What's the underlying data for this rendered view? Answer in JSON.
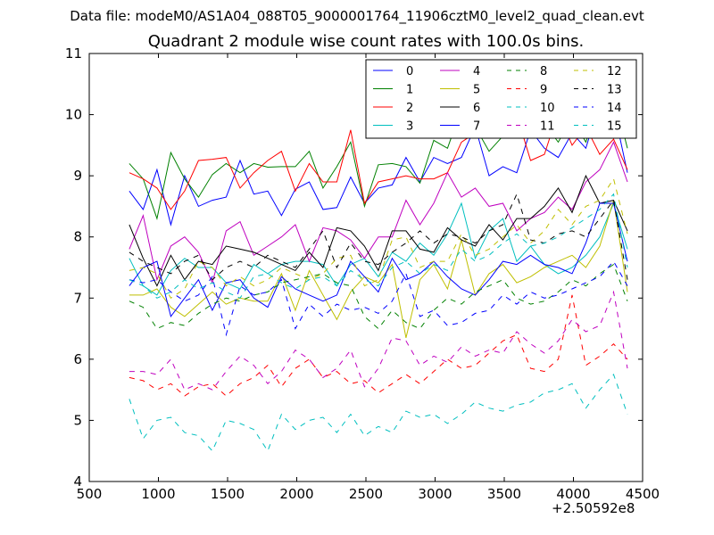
{
  "figure": {
    "suptitle": "Data file: modeM0/AS1A04_088T05_9000001764_11906cztM0_level2_quad_clean.evt",
    "x_offset_label": "+2.50592e8"
  },
  "chart_data": {
    "type": "line",
    "title": "Quadrant 2 module wise count rates with 100.0s bins.",
    "xlabel": "",
    "ylabel": "",
    "xlim": [
      500,
      4500
    ],
    "ylim": [
      4,
      11
    ],
    "xticks": [
      500,
      1000,
      1500,
      2000,
      2500,
      3000,
      3500,
      4000,
      4500
    ],
    "yticks": [
      4,
      5,
      6,
      7,
      8,
      9,
      10,
      11
    ],
    "grid": false,
    "legend": "top-right",
    "x": [
      790,
      890,
      990,
      1090,
      1190,
      1290,
      1390,
      1490,
      1590,
      1690,
      1790,
      1890,
      1990,
      2090,
      2190,
      2290,
      2390,
      2490,
      2590,
      2690,
      2790,
      2890,
      2990,
      3090,
      3190,
      3290,
      3390,
      3490,
      3590,
      3690,
      3790,
      3890,
      3990,
      4090,
      4190,
      4290,
      4390
    ],
    "series": [
      {
        "name": "0",
        "color": "#0000ff",
        "dash": "solid",
        "values": [
          8.75,
          8.45,
          9.1,
          8.2,
          9.0,
          8.5,
          8.6,
          8.65,
          9.25,
          8.7,
          8.75,
          8.35,
          8.78,
          8.9,
          8.45,
          8.48,
          8.98,
          8.55,
          8.8,
          8.85,
          9.3,
          8.9,
          9.3,
          9.2,
          9.3,
          9.8,
          9.0,
          9.15,
          9.05,
          9.75,
          9.45,
          9.3,
          9.7,
          9.45,
          10.2,
          10.1,
          9.05
        ]
      },
      {
        "name": "1",
        "color": "#008000",
        "dash": "solid",
        "values": [
          9.2,
          8.95,
          8.3,
          9.38,
          8.95,
          8.65,
          9.02,
          9.2,
          9.05,
          9.2,
          9.14,
          9.15,
          9.15,
          9.4,
          8.8,
          9.15,
          9.55,
          8.5,
          9.18,
          9.2,
          9.15,
          8.88,
          9.58,
          9.45,
          10.1,
          9.8,
          9.4,
          9.65,
          9.95,
          10.2,
          9.85,
          9.55,
          9.95,
          9.55,
          10.2,
          10.35,
          9.45
        ]
      },
      {
        "name": "2",
        "color": "#ff0000",
        "dash": "solid",
        "values": [
          9.05,
          8.95,
          8.8,
          8.45,
          8.75,
          9.25,
          9.27,
          9.3,
          8.8,
          9.05,
          9.25,
          9.4,
          8.75,
          9.2,
          8.9,
          8.9,
          9.75,
          8.55,
          8.9,
          8.95,
          9.0,
          8.95,
          8.95,
          9.05,
          9.55,
          9.7,
          9.95,
          9.65,
          10.0,
          9.25,
          9.35,
          10.05,
          9.5,
          9.8,
          9.35,
          9.6,
          9.1
        ]
      },
      {
        "name": "3",
        "color": "#00bfbf",
        "dash": "solid",
        "values": [
          7.65,
          7.2,
          7.05,
          7.45,
          7.65,
          7.5,
          7.5,
          7.25,
          7.15,
          7.55,
          7.4,
          7.55,
          7.6,
          7.6,
          7.55,
          7.2,
          7.55,
          7.65,
          7.35,
          7.75,
          7.6,
          7.9,
          7.7,
          8.05,
          8.55,
          7.65,
          8.1,
          8.3,
          7.6,
          7.85,
          7.55,
          7.4,
          7.5,
          7.7,
          8.0,
          8.55,
          7.8
        ]
      },
      {
        "name": "4",
        "color": "#bf00bf",
        "dash": "solid",
        "values": [
          7.8,
          8.35,
          7.3,
          7.85,
          8.0,
          7.75,
          7.25,
          8.1,
          8.25,
          7.7,
          7.85,
          8.0,
          8.2,
          7.6,
          8.15,
          8.1,
          7.95,
          7.65,
          8.0,
          8.0,
          8.6,
          8.2,
          8.55,
          9.05,
          8.65,
          8.8,
          8.5,
          8.55,
          8.1,
          8.3,
          8.4,
          8.65,
          8.45,
          8.9,
          9.1,
          9.55,
          8.9
        ]
      },
      {
        "name": "5",
        "color": "#bfbf00",
        "dash": "solid",
        "values": [
          7.05,
          7.05,
          7.15,
          6.85,
          6.7,
          6.9,
          7.1,
          6.9,
          7.0,
          6.95,
          6.95,
          7.4,
          6.8,
          7.45,
          7.05,
          6.65,
          7.1,
          7.35,
          7.25,
          7.55,
          6.35,
          7.3,
          7.55,
          7.15,
          7.95,
          7.05,
          7.4,
          7.55,
          7.25,
          7.35,
          7.5,
          7.6,
          7.7,
          7.5,
          7.85,
          8.6,
          7.1
        ]
      },
      {
        "name": "6",
        "color": "#000000",
        "dash": "solid",
        "values": [
          8.2,
          7.65,
          7.2,
          7.7,
          7.3,
          7.6,
          7.55,
          7.85,
          7.8,
          7.75,
          7.65,
          7.55,
          7.45,
          7.75,
          7.5,
          8.15,
          8.1,
          7.85,
          7.45,
          8.1,
          8.1,
          7.8,
          7.75,
          8.15,
          7.95,
          7.85,
          8.2,
          7.95,
          8.3,
          8.3,
          8.5,
          8.8,
          8.4,
          9.0,
          8.55,
          8.6,
          8.1
        ]
      },
      {
        "name": "7",
        "color": "#0000ff",
        "dash": "solid",
        "values": [
          7.2,
          7.5,
          7.6,
          6.7,
          7.0,
          7.3,
          6.8,
          7.25,
          7.3,
          7.0,
          6.85,
          7.35,
          7.15,
          7.05,
          6.95,
          7.05,
          7.6,
          7.35,
          7.1,
          7.65,
          7.3,
          7.4,
          7.6,
          7.35,
          7.15,
          7.05,
          7.3,
          7.6,
          7.55,
          7.7,
          7.55,
          7.5,
          7.4,
          7.9,
          8.55,
          8.55,
          7.6
        ]
      },
      {
        "name": "8",
        "color": "#008000",
        "dash": "dashed",
        "values": [
          6.95,
          6.85,
          6.5,
          6.6,
          6.55,
          6.75,
          6.9,
          7.0,
          6.95,
          7.05,
          7.1,
          7.25,
          7.3,
          7.35,
          7.4,
          7.25,
          7.2,
          6.7,
          6.5,
          6.8,
          6.6,
          6.5,
          6.8,
          7.0,
          6.9,
          7.1,
          7.2,
          7.3,
          7.0,
          6.9,
          6.95,
          7.1,
          7.3,
          7.2,
          7.4,
          7.55,
          6.95
        ]
      },
      {
        "name": "9",
        "color": "#ff0000",
        "dash": "dashed",
        "values": [
          5.7,
          5.65,
          5.5,
          5.6,
          5.4,
          5.55,
          5.6,
          5.4,
          5.6,
          5.7,
          5.9,
          5.55,
          5.85,
          6.0,
          5.7,
          5.8,
          5.6,
          5.65,
          5.45,
          5.6,
          5.75,
          5.6,
          5.8,
          6.0,
          5.85,
          5.9,
          6.1,
          6.3,
          6.4,
          5.85,
          5.8,
          6.0,
          7.05,
          5.9,
          6.05,
          6.25,
          6.0
        ]
      },
      {
        "name": "10",
        "color": "#00bfbf",
        "dash": "dashed",
        "values": [
          5.35,
          4.7,
          5.0,
          5.05,
          4.8,
          4.75,
          4.5,
          5.0,
          4.95,
          4.85,
          4.5,
          5.1,
          4.85,
          5.0,
          5.05,
          4.8,
          5.1,
          4.75,
          4.9,
          4.8,
          5.15,
          5.05,
          5.1,
          4.95,
          5.1,
          5.3,
          5.2,
          5.15,
          5.25,
          5.3,
          5.45,
          5.5,
          5.6,
          5.2,
          5.5,
          5.75,
          5.1
        ]
      },
      {
        "name": "11",
        "color": "#bf00bf",
        "dash": "dashed",
        "values": [
          5.8,
          5.8,
          5.75,
          6.0,
          5.5,
          5.6,
          5.5,
          5.8,
          6.05,
          5.9,
          5.6,
          5.8,
          6.15,
          6.0,
          5.7,
          5.85,
          6.15,
          5.55,
          5.85,
          6.35,
          6.3,
          5.9,
          6.05,
          5.95,
          6.2,
          6.05,
          6.15,
          6.1,
          6.45,
          6.25,
          6.1,
          6.3,
          6.65,
          6.45,
          6.55,
          7.1,
          5.85
        ]
      },
      {
        "name": "12",
        "color": "#bfbf00",
        "dash": "dashed",
        "values": [
          7.45,
          7.5,
          7.4,
          7.0,
          7.15,
          7.6,
          7.5,
          7.2,
          7.35,
          7.2,
          7.3,
          7.5,
          7.4,
          7.3,
          7.4,
          7.65,
          7.7,
          7.2,
          7.3,
          7.95,
          8.0,
          7.5,
          7.6,
          7.6,
          8.05,
          7.7,
          7.8,
          8.0,
          8.2,
          7.9,
          8.1,
          8.45,
          8.2,
          8.5,
          8.6,
          8.95,
          8.05
        ]
      },
      {
        "name": "13",
        "color": "#000000",
        "dash": "dashed",
        "values": [
          7.75,
          7.6,
          7.5,
          7.4,
          7.6,
          7.7,
          7.3,
          7.5,
          7.6,
          7.5,
          7.7,
          7.6,
          7.5,
          7.8,
          8.1,
          7.5,
          7.9,
          7.6,
          7.55,
          7.75,
          7.9,
          8.1,
          7.9,
          8.05,
          8.0,
          7.9,
          8.1,
          8.2,
          8.7,
          7.95,
          7.9,
          8.05,
          8.1,
          8.0,
          8.3,
          8.6,
          7.3
        ]
      },
      {
        "name": "14",
        "color": "#0000ff",
        "dash": "dashed",
        "values": [
          7.3,
          7.25,
          7.3,
          7.1,
          6.95,
          7.05,
          7.35,
          6.4,
          7.2,
          7.05,
          7.1,
          7.3,
          6.5,
          6.9,
          6.7,
          6.9,
          6.8,
          6.85,
          6.75,
          6.95,
          7.4,
          6.7,
          6.8,
          6.55,
          6.6,
          6.75,
          6.8,
          7.05,
          6.9,
          7.1,
          7.0,
          7.05,
          7.15,
          7.25,
          7.35,
          7.6,
          7.2
        ]
      },
      {
        "name": "15",
        "color": "#00bfbf",
        "dash": "dashed",
        "values": [
          7.3,
          7.2,
          7.0,
          7.1,
          7.3,
          7.15,
          7.25,
          7.1,
          7.0,
          7.35,
          7.4,
          7.25,
          7.15,
          7.3,
          7.35,
          7.2,
          7.45,
          7.3,
          7.2,
          7.5,
          7.6,
          7.4,
          7.55,
          7.45,
          7.8,
          7.6,
          7.7,
          7.9,
          8.05,
          7.85,
          7.9,
          8.0,
          8.15,
          8.3,
          8.45,
          8.7,
          7.5
        ]
      }
    ]
  }
}
